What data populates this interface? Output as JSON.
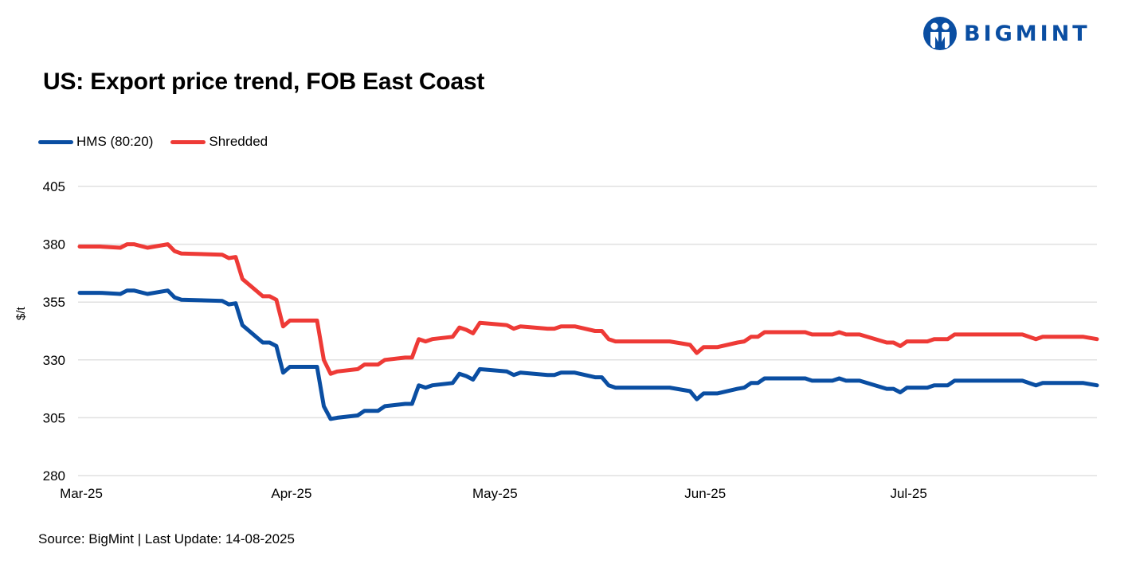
{
  "header": {
    "title": "US: Export price trend, FOB East Coast",
    "logo_text": "BIGMINT",
    "logo_icon": "bigmint-logo-icon"
  },
  "legend": [
    {
      "label": "HMS (80:20)",
      "color": "#0a4ea2"
    },
    {
      "label": "Shredded",
      "color": "#ee3a36"
    }
  ],
  "footer": {
    "source": "Source: BigMint | Last Update: 14-08-2025"
  },
  "colors": {
    "hms": "#0a4ea2",
    "shredded": "#ee3a36",
    "grid": "#e0e0e0",
    "brand": "#0a4ea2"
  },
  "chart_data": {
    "type": "line",
    "title": "US: Export price trend, FOB East Coast",
    "xlabel": "",
    "ylabel": "$/t",
    "ylim": [
      280,
      405
    ],
    "yticks": [
      405,
      380,
      355,
      330,
      305,
      280
    ],
    "xtick_labels": [
      "Mar-25",
      "Apr-25",
      "May-25",
      "Jun-25",
      "Jul-25"
    ],
    "xtick_days": [
      0,
      31,
      61,
      92,
      122
    ],
    "x_range_days": [
      0,
      150
    ],
    "grid": true,
    "legend_position": "top-left",
    "x_unit": "days since 01-Mar-2025",
    "series": [
      {
        "name": "Shredded",
        "color": "#ee3a36",
        "points": [
          [
            0,
            379
          ],
          [
            3,
            379
          ],
          [
            6,
            378.5
          ],
          [
            7,
            380
          ],
          [
            8,
            380
          ],
          [
            10,
            378.5
          ],
          [
            13,
            380
          ],
          [
            14,
            377
          ],
          [
            15,
            376
          ],
          [
            21,
            375.5
          ],
          [
            22,
            374
          ],
          [
            23,
            374.5
          ],
          [
            24,
            365
          ],
          [
            27,
            357.5
          ],
          [
            28,
            357.5
          ],
          [
            29,
            356
          ],
          [
            30,
            344.5
          ],
          [
            31,
            347
          ],
          [
            35,
            347
          ],
          [
            36,
            330
          ],
          [
            37,
            324
          ],
          [
            38,
            325
          ],
          [
            41,
            326
          ],
          [
            42,
            328
          ],
          [
            44,
            328
          ],
          [
            45,
            330
          ],
          [
            48,
            331
          ],
          [
            49,
            331
          ],
          [
            50,
            339
          ],
          [
            51,
            338
          ],
          [
            52,
            339
          ],
          [
            55,
            340
          ],
          [
            56,
            344
          ],
          [
            57,
            343
          ],
          [
            58,
            341.5
          ],
          [
            59,
            346
          ],
          [
            63,
            345
          ],
          [
            64,
            343.5
          ],
          [
            65,
            344.5
          ],
          [
            69,
            343.5
          ],
          [
            70,
            343.5
          ],
          [
            71,
            344.5
          ],
          [
            73,
            344.5
          ],
          [
            76,
            342.5
          ],
          [
            77,
            342.5
          ],
          [
            78,
            339
          ],
          [
            79,
            338
          ],
          [
            87,
            338
          ],
          [
            90,
            336.5
          ],
          [
            91,
            333
          ],
          [
            92,
            335.5
          ],
          [
            94,
            335.5
          ],
          [
            97,
            337.5
          ],
          [
            98,
            338
          ],
          [
            99,
            340
          ],
          [
            100,
            340
          ],
          [
            101,
            342
          ],
          [
            107,
            342
          ],
          [
            108,
            341
          ],
          [
            111,
            341
          ],
          [
            112,
            342
          ],
          [
            113,
            341
          ],
          [
            115,
            341
          ],
          [
            119,
            337.5
          ],
          [
            120,
            337.5
          ],
          [
            121,
            336
          ],
          [
            122,
            338
          ],
          [
            125,
            338
          ],
          [
            126,
            339
          ],
          [
            128,
            339
          ],
          [
            129,
            341
          ],
          [
            139,
            341
          ],
          [
            141,
            339
          ],
          [
            142,
            340
          ],
          [
            148,
            340
          ],
          [
            150,
            339
          ]
        ]
      },
      {
        "name": "HMS (80:20)",
        "color": "#0a4ea2",
        "points": [
          [
            0,
            359
          ],
          [
            3,
            359
          ],
          [
            6,
            358.5
          ],
          [
            7,
            360
          ],
          [
            8,
            360
          ],
          [
            10,
            358.5
          ],
          [
            13,
            360
          ],
          [
            14,
            357
          ],
          [
            15,
            356
          ],
          [
            21,
            355.5
          ],
          [
            22,
            354
          ],
          [
            23,
            354.5
          ],
          [
            24,
            345
          ],
          [
            27,
            337.5
          ],
          [
            28,
            337.5
          ],
          [
            29,
            336
          ],
          [
            30,
            324.5
          ],
          [
            31,
            327
          ],
          [
            35,
            327
          ],
          [
            36,
            310
          ],
          [
            37,
            304.5
          ],
          [
            38,
            305
          ],
          [
            41,
            306
          ],
          [
            42,
            308
          ],
          [
            44,
            308
          ],
          [
            45,
            310
          ],
          [
            48,
            311
          ],
          [
            49,
            311
          ],
          [
            50,
            319
          ],
          [
            51,
            318
          ],
          [
            52,
            319
          ],
          [
            55,
            320
          ],
          [
            56,
            324
          ],
          [
            57,
            323
          ],
          [
            58,
            321.5
          ],
          [
            59,
            326
          ],
          [
            63,
            325
          ],
          [
            64,
            323.5
          ],
          [
            65,
            324.5
          ],
          [
            69,
            323.5
          ],
          [
            70,
            323.5
          ],
          [
            71,
            324.5
          ],
          [
            73,
            324.5
          ],
          [
            76,
            322.5
          ],
          [
            77,
            322.5
          ],
          [
            78,
            319
          ],
          [
            79,
            318
          ],
          [
            87,
            318
          ],
          [
            90,
            316.5
          ],
          [
            91,
            313
          ],
          [
            92,
            315.5
          ],
          [
            94,
            315.5
          ],
          [
            97,
            317.5
          ],
          [
            98,
            318
          ],
          [
            99,
            320
          ],
          [
            100,
            320
          ],
          [
            101,
            322
          ],
          [
            107,
            322
          ],
          [
            108,
            321
          ],
          [
            111,
            321
          ],
          [
            112,
            322
          ],
          [
            113,
            321
          ],
          [
            115,
            321
          ],
          [
            119,
            317.5
          ],
          [
            120,
            317.5
          ],
          [
            121,
            316
          ],
          [
            122,
            318
          ],
          [
            125,
            318
          ],
          [
            126,
            319
          ],
          [
            128,
            319
          ],
          [
            129,
            321
          ],
          [
            139,
            321
          ],
          [
            141,
            319
          ],
          [
            142,
            320
          ],
          [
            148,
            320
          ],
          [
            150,
            319
          ]
        ]
      }
    ]
  }
}
